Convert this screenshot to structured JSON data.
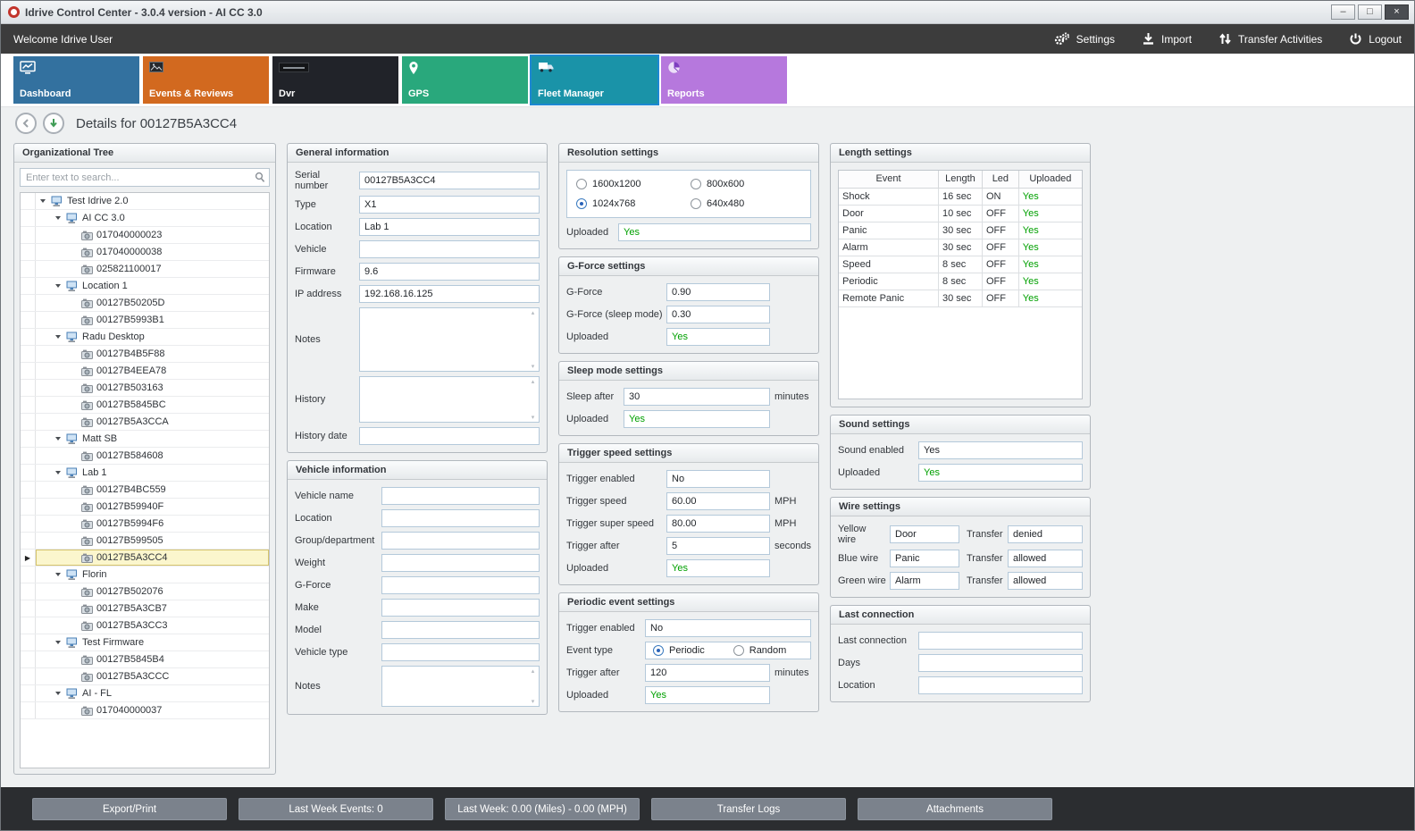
{
  "window": {
    "title": "Idrive Control Center - 3.0.4 version - AI CC 3.0",
    "controls": {
      "minimize": "–",
      "maximize": "□",
      "close": "×"
    }
  },
  "toolbar": {
    "welcome": "Welcome Idrive User",
    "actions": [
      {
        "id": "settings",
        "label": "Settings",
        "icon": "gears-icon"
      },
      {
        "id": "import",
        "label": "Import",
        "icon": "download-icon"
      },
      {
        "id": "transfer-activities",
        "label": "Transfer Activities",
        "icon": "transfer-arrows-icon"
      },
      {
        "id": "logout",
        "label": "Logout",
        "icon": "power-icon"
      }
    ]
  },
  "tabs": [
    {
      "id": "dashboard",
      "label": "Dashboard",
      "color": "#33719f",
      "selected": false,
      "icon": "chart-monitor-icon"
    },
    {
      "id": "events-reviews",
      "label": "Events & Reviews",
      "color": "#d2691f",
      "selected": false,
      "icon": "photo-icon"
    },
    {
      "id": "dvr",
      "label": "Dvr",
      "color": "#212329",
      "selected": false,
      "icon": "dvr-logo-icon"
    },
    {
      "id": "gps",
      "label": "GPS",
      "color": "#29a87c",
      "selected": false,
      "icon": "map-pin-icon"
    },
    {
      "id": "fleet-manager",
      "label": "Fleet Manager",
      "color": "#1a93a8",
      "selected": true,
      "icon": "truck-icon"
    },
    {
      "id": "reports",
      "label": "Reports",
      "color": "#b678dd",
      "selected": false,
      "icon": "pie-chart-icon"
    }
  ],
  "details": {
    "title": "Details for 00127B5A3CC4"
  },
  "org_tree": {
    "title": "Organizational Tree",
    "search_placeholder": "Enter text to search...",
    "items": [
      {
        "label": "Test Idrive 2.0",
        "type": "group",
        "level": 0
      },
      {
        "label": "AI CC 3.0",
        "type": "group",
        "level": 1
      },
      {
        "label": "017040000023",
        "type": "device",
        "level": 2
      },
      {
        "label": "017040000038",
        "type": "device",
        "level": 2
      },
      {
        "label": "025821100017",
        "type": "device",
        "level": 2
      },
      {
        "label": "Location 1",
        "type": "group",
        "level": 1
      },
      {
        "label": "00127B50205D",
        "type": "device",
        "level": 2
      },
      {
        "label": "00127B5993B1",
        "type": "device",
        "level": 2
      },
      {
        "label": "Radu Desktop",
        "type": "group",
        "level": 1
      },
      {
        "label": "00127B4B5F88",
        "type": "device",
        "level": 2
      },
      {
        "label": "00127B4EEA78",
        "type": "device",
        "level": 2
      },
      {
        "label": "00127B503163",
        "type": "device",
        "level": 2
      },
      {
        "label": "00127B5845BC",
        "type": "device",
        "level": 2
      },
      {
        "label": "00127B5A3CCA",
        "type": "device",
        "level": 2
      },
      {
        "label": "Matt SB",
        "type": "group",
        "level": 1
      },
      {
        "label": "00127B584608",
        "type": "device",
        "level": 2
      },
      {
        "label": "Lab 1",
        "type": "group",
        "level": 1
      },
      {
        "label": "00127B4BC559",
        "type": "device",
        "level": 2
      },
      {
        "label": "00127B59940F",
        "type": "device",
        "level": 2
      },
      {
        "label": "00127B5994F6",
        "type": "device",
        "level": 2
      },
      {
        "label": "00127B599505",
        "type": "device",
        "level": 2
      },
      {
        "label": "00127B5A3CC4",
        "type": "device",
        "level": 2,
        "selected": true
      },
      {
        "label": "Florin",
        "type": "group",
        "level": 1
      },
      {
        "label": "00127B502076",
        "type": "device",
        "level": 2
      },
      {
        "label": "00127B5A3CB7",
        "type": "device",
        "level": 2
      },
      {
        "label": "00127B5A3CC3",
        "type": "device",
        "level": 2
      },
      {
        "label": "Test Firmware",
        "type": "group",
        "level": 1
      },
      {
        "label": "00127B5845B4",
        "type": "device",
        "level": 2
      },
      {
        "label": "00127B5A3CCC",
        "type": "device",
        "level": 2
      },
      {
        "label": "AI - FL",
        "type": "group",
        "level": 1
      },
      {
        "label": "017040000037",
        "type": "device",
        "level": 2
      }
    ]
  },
  "general_information": {
    "title": "General information",
    "fields": {
      "serial_number": {
        "label": "Serial number",
        "value": "00127B5A3CC4"
      },
      "type": {
        "label": "Type",
        "value": "X1"
      },
      "location": {
        "label": "Location",
        "value": "Lab 1"
      },
      "vehicle": {
        "label": "Vehicle",
        "value": ""
      },
      "firmware": {
        "label": "Firmware",
        "value": "9.6"
      },
      "ip_address": {
        "label": "IP address",
        "value": "192.168.16.125"
      },
      "notes": {
        "label": "Notes",
        "value": ""
      },
      "history": {
        "label": "History",
        "value": ""
      },
      "history_date": {
        "label": "History date",
        "value": ""
      }
    }
  },
  "vehicle_information": {
    "title": "Vehicle information",
    "fields": {
      "vehicle_name": {
        "label": "Vehicle name",
        "value": ""
      },
      "location": {
        "label": "Location",
        "value": ""
      },
      "group_department": {
        "label": "Group/department",
        "value": ""
      },
      "weight": {
        "label": "Weight",
        "value": ""
      },
      "g_force": {
        "label": "G-Force",
        "value": ""
      },
      "make": {
        "label": "Make",
        "value": ""
      },
      "model": {
        "label": "Model",
        "value": ""
      },
      "vehicle_type": {
        "label": "Vehicle type",
        "value": ""
      },
      "notes": {
        "label": "Notes",
        "value": ""
      }
    }
  },
  "resolution_settings": {
    "title": "Resolution settings",
    "options": [
      "1600x1200",
      "800x600",
      "1024x768",
      "640x480"
    ],
    "selected": "1024x768",
    "uploaded_label": "Uploaded",
    "uploaded": "Yes"
  },
  "gforce_settings": {
    "title": "G-Force settings",
    "fields": {
      "g_force": {
        "label": "G-Force",
        "value": "0.90"
      },
      "g_force_sleep": {
        "label": "G-Force (sleep mode)",
        "value": "0.30"
      }
    },
    "uploaded_label": "Uploaded",
    "uploaded": "Yes"
  },
  "sleep_mode_settings": {
    "title": "Sleep mode settings",
    "fields": {
      "sleep_after": {
        "label": "Sleep after",
        "value": "30",
        "suffix": "minutes"
      }
    },
    "uploaded_label": "Uploaded",
    "uploaded": "Yes"
  },
  "trigger_speed_settings": {
    "title": "Trigger speed settings",
    "fields": {
      "trigger_enabled": {
        "label": "Trigger enabled",
        "value": "No"
      },
      "trigger_speed": {
        "label": "Trigger speed",
        "value": "60.00",
        "suffix": "MPH"
      },
      "trigger_super_speed": {
        "label": "Trigger super speed",
        "value": "80.00",
        "suffix": "MPH"
      },
      "trigger_after": {
        "label": "Trigger after",
        "value": "5",
        "suffix": "seconds"
      }
    },
    "uploaded_label": "Uploaded",
    "uploaded": "Yes"
  },
  "periodic_event_settings": {
    "title": "Periodic event settings",
    "fields": {
      "trigger_enabled": {
        "label": "Trigger enabled",
        "value": "No"
      },
      "trigger_after": {
        "label": "Trigger after",
        "value": "120",
        "suffix": "minutes"
      }
    },
    "event_type": {
      "label": "Event type",
      "options": [
        "Periodic",
        "Random"
      ],
      "selected": "Periodic"
    },
    "uploaded_label": "Uploaded",
    "uploaded": "Yes"
  },
  "length_settings": {
    "title": "Length settings",
    "headers": [
      "Event",
      "Length",
      "Led",
      "Uploaded"
    ],
    "rows": [
      [
        "Shock",
        "16 sec",
        "ON",
        "Yes"
      ],
      [
        "Door",
        "10 sec",
        "OFF",
        "Yes"
      ],
      [
        "Panic",
        "30 sec",
        "OFF",
        "Yes"
      ],
      [
        "Alarm",
        "30 sec",
        "OFF",
        "Yes"
      ],
      [
        "Speed",
        "8 sec",
        "OFF",
        "Yes"
      ],
      [
        "Periodic",
        "8 sec",
        "OFF",
        "Yes"
      ],
      [
        "Remote Panic",
        "30 sec",
        "OFF",
        "Yes"
      ]
    ]
  },
  "sound_settings": {
    "title": "Sound settings",
    "fields": {
      "sound_enabled": {
        "label": "Sound enabled",
        "value": "Yes"
      }
    },
    "uploaded_label": "Uploaded",
    "uploaded": "Yes"
  },
  "wire_settings": {
    "title": "Wire settings",
    "rows": [
      {
        "id": "yellow",
        "label": "Yellow wire",
        "value": "Door",
        "transfer_label": "Transfer",
        "transfer": "denied"
      },
      {
        "id": "blue",
        "label": "Blue wire",
        "value": "Panic",
        "transfer_label": "Transfer",
        "transfer": "allowed"
      },
      {
        "id": "green",
        "label": "Green wire",
        "value": "Alarm",
        "transfer_label": "Transfer",
        "transfer": "allowed"
      }
    ]
  },
  "last_connection": {
    "title": "Last connection",
    "fields": {
      "last_connection": {
        "label": "Last connection",
        "value": ""
      },
      "days": {
        "label": "Days",
        "value": ""
      },
      "location": {
        "label": "Location",
        "value": ""
      }
    }
  },
  "bottom_bar": {
    "buttons": [
      {
        "id": "export-print",
        "label": "Export/Print"
      },
      {
        "id": "last-week-events",
        "label": "Last Week Events: 0"
      },
      {
        "id": "last-week-miles",
        "label": "Last Week: 0.00 (Miles) - 0.00 (MPH)"
      },
      {
        "id": "transfer-logs",
        "label": "Transfer Logs"
      },
      {
        "id": "attachments",
        "label": "Attachments"
      }
    ]
  },
  "colors": {
    "uploaded_green": "#00a000",
    "selected_row_bg": "#fbf6cd",
    "selected_tab_outline": "#1e88d2"
  }
}
